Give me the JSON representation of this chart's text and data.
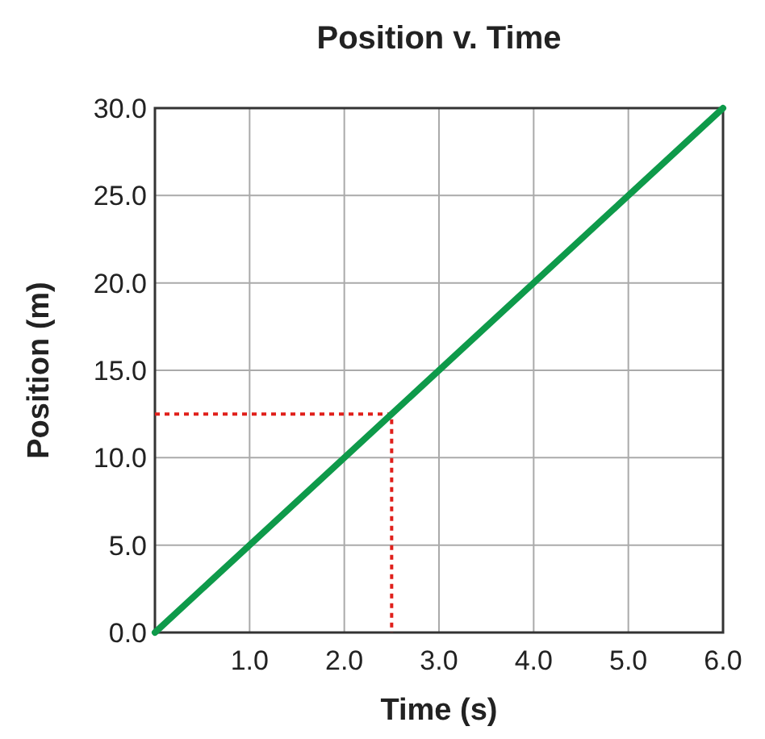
{
  "chart_data": {
    "type": "line",
    "title": "Position v. Time",
    "xlabel": "Time (s)",
    "ylabel": "Position (m)",
    "xlim": [
      0,
      6
    ],
    "ylim": [
      0,
      30
    ],
    "xticks": [
      {
        "value": 1,
        "label": "1.0"
      },
      {
        "value": 2,
        "label": "2.0"
      },
      {
        "value": 3,
        "label": "3.0"
      },
      {
        "value": 4,
        "label": "4.0"
      },
      {
        "value": 5,
        "label": "5.0"
      },
      {
        "value": 6,
        "label": "6.0"
      }
    ],
    "yticks": [
      {
        "value": 0,
        "label": "0.0"
      },
      {
        "value": 5,
        "label": "5.0"
      },
      {
        "value": 10,
        "label": "10.0"
      },
      {
        "value": 15,
        "label": "15.0"
      },
      {
        "value": 20,
        "label": "20.0"
      },
      {
        "value": 25,
        "label": "25.0"
      },
      {
        "value": 30,
        "label": "30.0"
      }
    ],
    "grid": true,
    "series": [
      {
        "color": "#0e9a4a",
        "x": [
          0,
          6
        ],
        "values": [
          0,
          30
        ],
        "line_style": "solid"
      },
      {
        "color": "#e0201b",
        "x": [
          0,
          2.5,
          2.5
        ],
        "values": [
          12.5,
          12.5,
          0
        ],
        "line_style": "dotted"
      }
    ]
  }
}
